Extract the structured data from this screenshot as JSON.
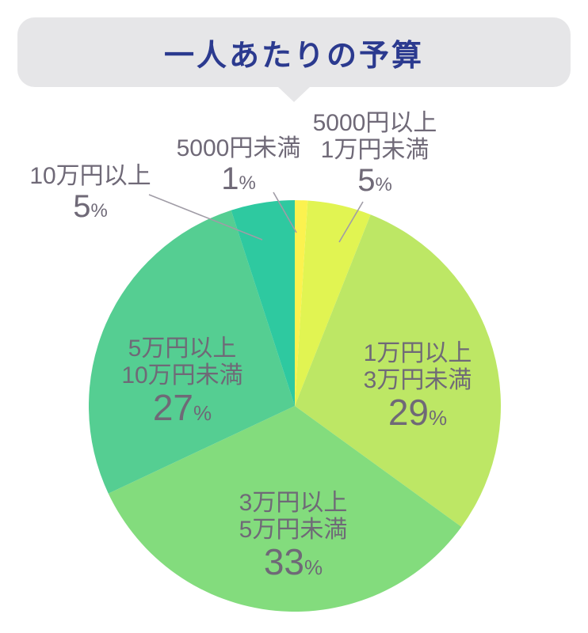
{
  "title": {
    "text": "一人あたりの予算"
  },
  "chart_data": {
    "type": "pie",
    "title": "一人あたりの予算",
    "legend": "none",
    "start_angle": "12-oclock, clockwise",
    "label_color": "#6F6977",
    "title_color": "#2B3A8F",
    "banner_background": "#E6E6E8",
    "slices": [
      {
        "label": "5000円未満",
        "line1": "5000円未満",
        "line2": "",
        "value": 1,
        "pct": "1",
        "unit": "%",
        "color": "#FBF24F",
        "label_placement": "outside"
      },
      {
        "label": "5000円以上 1万円未満",
        "line1": "5000円以上",
        "line2": "1万円未満",
        "value": 5,
        "pct": "5",
        "unit": "%",
        "color": "#E1F452",
        "label_placement": "outside"
      },
      {
        "label": "1万円以上 3万円未満",
        "line1": "1万円以上",
        "line2": "3万円未満",
        "value": 29,
        "pct": "29",
        "unit": "%",
        "color": "#BDE765",
        "label_placement": "inside"
      },
      {
        "label": "3万円以上 5万円未満",
        "line1": "3万円以上",
        "line2": "5万円未満",
        "value": 33,
        "pct": "33",
        "unit": "%",
        "color": "#83DC7D",
        "label_placement": "inside"
      },
      {
        "label": "5万円以上 10万円未満",
        "line1": "5万円以上",
        "line2": "10万円未満",
        "value": 27,
        "pct": "27",
        "unit": "%",
        "color": "#55CE92",
        "label_placement": "inside"
      },
      {
        "label": "10万円以上",
        "line1": "10万円以上",
        "line2": "",
        "value": 5,
        "pct": "5",
        "unit": "%",
        "color": "#2EC9A0",
        "label_placement": "outside"
      }
    ]
  }
}
